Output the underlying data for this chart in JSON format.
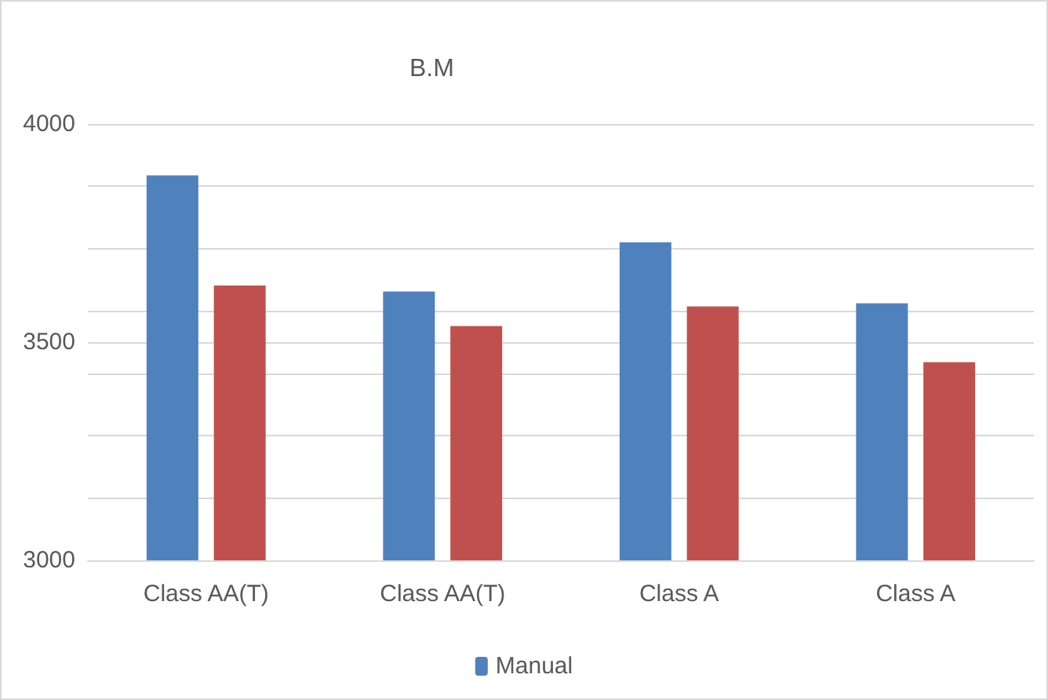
{
  "chart_data": {
    "type": "bar",
    "title": "B.M",
    "categories": [
      "Class AA(T)",
      "Class AA(T)",
      "Class A",
      "Class A"
    ],
    "series": [
      {
        "name": "Manual",
        "color": "#4f81bd",
        "values": [
          3882,
          3616,
          3729,
          3589
        ]
      },
      {
        "color": "#c0504d",
        "values": [
          3630,
          3537,
          3582,
          3454
        ]
      }
    ],
    "ylim": [
      3000,
      4000
    ],
    "yticks": [
      3000,
      {
        "value": 3142.9,
        "label": null
      },
      {
        "value": 3285.7,
        "label": null
      },
      {
        "value": 3428.6,
        "label": null
      },
      3500,
      {
        "value": 3571.4,
        "label": null
      },
      {
        "value": 3714.3,
        "label": null
      },
      {
        "value": 3857.1,
        "label": null
      },
      4000
    ],
    "grid": "y",
    "legend": "bottom"
  }
}
